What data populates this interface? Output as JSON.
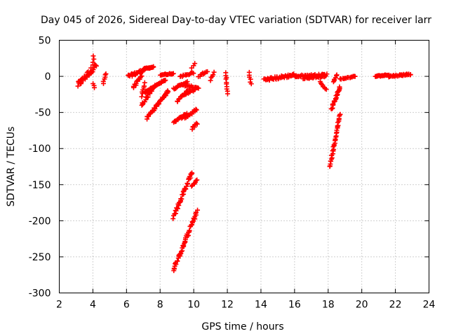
{
  "chart_data": {
    "type": "scatter",
    "title": "Day 045 of 2026, Sidereal Day-to-day VTEC variation (SDTVAR) for receiver larr",
    "xlabel": "GPS time / hours",
    "ylabel": "SDTVAR / TECUs",
    "xlim": [
      2,
      24
    ],
    "ylim": [
      -300,
      50
    ],
    "xticks": [
      2,
      4,
      6,
      8,
      10,
      12,
      14,
      16,
      18,
      20,
      22,
      24
    ],
    "yticks": [
      50,
      0,
      -50,
      -100,
      -150,
      -200,
      -250,
      -300
    ],
    "grid": true,
    "marker": "+",
    "color": "#ff0000",
    "segments": [
      {
        "x0": 3.1,
        "x1": 4.2,
        "y0": -12,
        "y1": 16,
        "n": 40,
        "jitter": 8
      },
      {
        "x0": 4.0,
        "x1": 4.05,
        "y0": 15,
        "y1": 28,
        "n": 4,
        "jitter": 2
      },
      {
        "x0": 4.0,
        "x1": 4.1,
        "y0": -10,
        "y1": -16,
        "n": 3,
        "jitter": 1
      },
      {
        "x0": 4.6,
        "x1": 4.8,
        "y0": -10,
        "y1": 4,
        "n": 6,
        "jitter": 2
      },
      {
        "x0": 6.1,
        "x1": 7.0,
        "y0": 0,
        "y1": 8,
        "n": 30,
        "jitter": 4
      },
      {
        "x0": 7.0,
        "x1": 7.6,
        "y0": 10,
        "y1": 13,
        "n": 22,
        "jitter": 1.5
      },
      {
        "x0": 6.4,
        "x1": 6.9,
        "y0": -15,
        "y1": 0,
        "n": 12,
        "jitter": 3
      },
      {
        "x0": 6.9,
        "x1": 7.1,
        "y0": -27,
        "y1": -10,
        "n": 8,
        "jitter": 3
      },
      {
        "x0": 7.1,
        "x1": 8.3,
        "y0": -22,
        "y1": -5,
        "n": 40,
        "jitter": 2
      },
      {
        "x0": 6.9,
        "x1": 7.6,
        "y0": -40,
        "y1": -15,
        "n": 20,
        "jitter": 4
      },
      {
        "x0": 7.2,
        "x1": 8.5,
        "y0": -58,
        "y1": -20,
        "n": 42,
        "jitter": 3
      },
      {
        "x0": 8.0,
        "x1": 8.8,
        "y0": 2,
        "y1": 4,
        "n": 20,
        "jitter": 1.5
      },
      {
        "x0": 8.8,
        "x1": 9.6,
        "y0": -17,
        "y1": -8,
        "n": 20,
        "jitter": 2
      },
      {
        "x0": 9.3,
        "x1": 10.3,
        "y0": -12,
        "y1": -16,
        "n": 20,
        "jitter": 2
      },
      {
        "x0": 9.0,
        "x1": 9.7,
        "y0": -35,
        "y1": -18,
        "n": 16,
        "jitter": 3
      },
      {
        "x0": 9.4,
        "x1": 10.1,
        "y0": -26,
        "y1": -18,
        "n": 16,
        "jitter": 2
      },
      {
        "x0": 9.2,
        "x1": 10.0,
        "y0": 0,
        "y1": 5,
        "n": 16,
        "jitter": 2
      },
      {
        "x0": 9.9,
        "x1": 10.05,
        "y0": 12,
        "y1": 18,
        "n": 3,
        "jitter": 1
      },
      {
        "x0": 8.8,
        "x1": 9.6,
        "y0": -63,
        "y1": -52,
        "n": 20,
        "jitter": 3
      },
      {
        "x0": 9.5,
        "x1": 10.2,
        "y0": -57,
        "y1": -46,
        "n": 16,
        "jitter": 3
      },
      {
        "x0": 9.9,
        "x1": 10.2,
        "y0": -72,
        "y1": -65,
        "n": 8,
        "jitter": 3
      },
      {
        "x0": 10.3,
        "x1": 10.8,
        "y0": 0,
        "y1": 8,
        "n": 10,
        "jitter": 3
      },
      {
        "x0": 8.8,
        "x1": 9.9,
        "y0": -195,
        "y1": -132,
        "n": 40,
        "jitter": 5
      },
      {
        "x0": 9.9,
        "x1": 10.2,
        "y0": -153,
        "y1": -143,
        "n": 8,
        "jitter": 3
      },
      {
        "x0": 8.8,
        "x1": 10.2,
        "y0": -268,
        "y1": -187,
        "n": 50,
        "jitter": 5
      },
      {
        "x0": 11.0,
        "x1": 11.2,
        "y0": -5,
        "y1": 5,
        "n": 5,
        "jitter": 3
      },
      {
        "x0": 11.9,
        "x1": 12.0,
        "y0": 5,
        "y1": -24,
        "n": 10,
        "jitter": 2
      },
      {
        "x0": 13.3,
        "x1": 13.4,
        "y0": 5,
        "y1": -10,
        "n": 6,
        "jitter": 2
      },
      {
        "x0": 14.2,
        "x1": 16.0,
        "y0": -5,
        "y1": 2,
        "n": 50,
        "jitter": 4
      },
      {
        "x0": 16.0,
        "x1": 17.9,
        "y0": 0,
        "y1": 2,
        "n": 50,
        "jitter": 3
      },
      {
        "x0": 16.5,
        "x1": 17.8,
        "y0": -3,
        "y1": 0,
        "n": 20,
        "jitter": 1.5
      },
      {
        "x0": 17.5,
        "x1": 17.9,
        "y0": -8,
        "y1": -18,
        "n": 8,
        "jitter": 2
      },
      {
        "x0": 18.2,
        "x1": 18.7,
        "y0": -45,
        "y1": -15,
        "n": 26,
        "jitter": 3
      },
      {
        "x0": 18.1,
        "x1": 18.7,
        "y0": -125,
        "y1": -52,
        "n": 36,
        "jitter": 3
      },
      {
        "x0": 18.3,
        "x1": 18.5,
        "y0": -8,
        "y1": 3,
        "n": 6,
        "jitter": 2
      },
      {
        "x0": 18.7,
        "x1": 19.6,
        "y0": -4,
        "y1": 0,
        "n": 20,
        "jitter": 1.5
      },
      {
        "x0": 20.8,
        "x1": 21.6,
        "y0": 0,
        "y1": 2,
        "n": 20,
        "jitter": 1.5
      },
      {
        "x0": 21.6,
        "x1": 22.9,
        "y0": 0,
        "y1": 3,
        "n": 34,
        "jitter": 2
      }
    ]
  }
}
